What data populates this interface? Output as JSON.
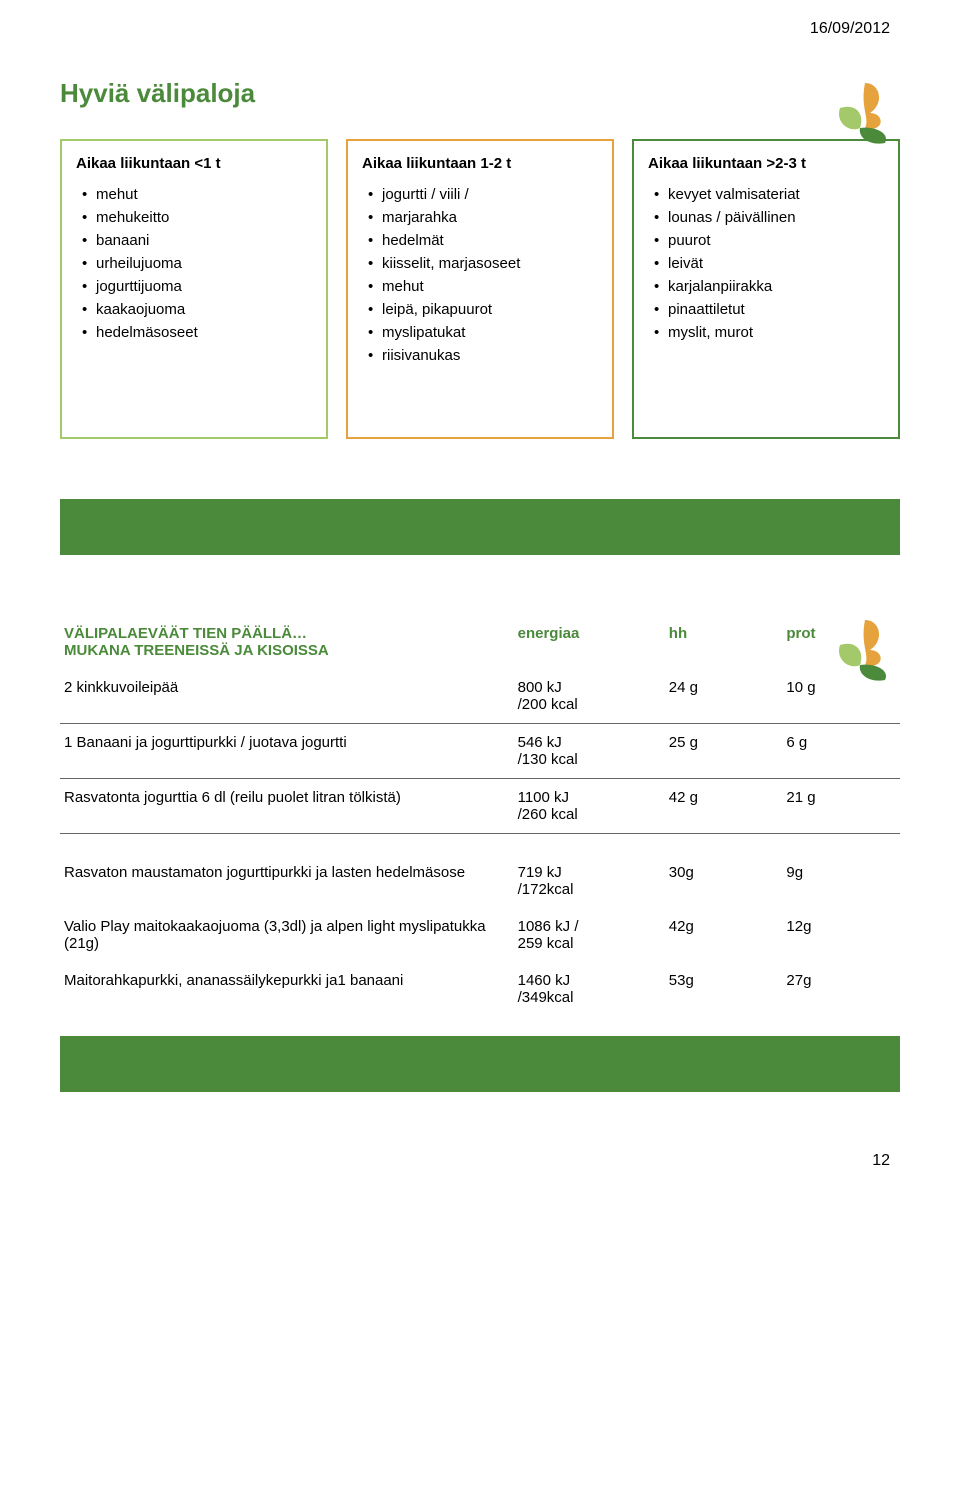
{
  "header": {
    "date": "16/09/2012"
  },
  "footer": {
    "page_number": "12"
  },
  "colors": {
    "accent_green": "#4a8a3a",
    "box1_border": "#a4c96a",
    "box2_border": "#e6a23c",
    "box3_border": "#4a8a3a",
    "bottom_bar": "#4a8a3a"
  },
  "logo": {
    "swish_orange": "#e6a23c",
    "swish_green_light": "#a4c96a",
    "swish_green_dark": "#4a8a3a"
  },
  "slide1": {
    "title": "Hyviä välipaloja",
    "cols": [
      {
        "heading": "Aikaa liikuntaan <1 t",
        "items": [
          "mehut",
          "mehukeitto",
          "banaani",
          "urheilujuoma",
          "jogurttijuoma",
          "kaakaojuoma",
          "hedelmäsoseet"
        ]
      },
      {
        "heading": "Aikaa liikuntaan 1-2 t",
        "items": [
          "jogurtti / viili /",
          "marjarahka",
          "hedelmät",
          "kiisselit, marjasoseet",
          "mehut",
          "leipä, pikapuurot",
          "myslipatukat",
          "riisivanukas"
        ]
      },
      {
        "heading": "Aikaa liikuntaan >2-3 t",
        "items": [
          "kevyet valmisateriat",
          "lounas / päivällinen",
          "puurot",
          "leivät",
          "karjalanpiirakka",
          "pinaattiletut",
          "myslit, murot"
        ]
      }
    ]
  },
  "slide2": {
    "table_heading_left": "VÄLIPALAEVÄÄT TIEN PÄÄLLÄ…\nMUKANA TREENEISSÄ JA KISOISSA",
    "headers": [
      "energiaa",
      "hh",
      "prot"
    ],
    "rows_a": [
      {
        "label": "2 kinkkuvoileipää",
        "energy": "800 kJ\n/200 kcal",
        "hh": "24 g",
        "prot": "10 g"
      },
      {
        "label": "1 Banaani ja jogurttipurkki / juotava jogurtti",
        "energy": "546 kJ\n/130 kcal",
        "hh": "25 g",
        "prot": "6 g"
      },
      {
        "label": "Rasvatonta jogurttia 6 dl  (reilu puolet litran tölkistä)",
        "energy": "1100 kJ\n/260 kcal",
        "hh": "42 g",
        "prot": "21 g"
      }
    ],
    "rows_b": [
      {
        "label": "Rasvaton maustamaton jogurttipurkki ja lasten hedelmäsose",
        "energy": "719 kJ\n/172kcal",
        "hh": "30g",
        "prot": "9g"
      },
      {
        "label": "Valio Play maitokaakaojuoma (3,3dl) ja alpen light myslipatukka (21g)",
        "energy": "1086 kJ /\n259 kcal",
        "hh": "42g",
        "prot": "12g"
      },
      {
        "label": "Maitorahkapurkki, ananassäilykepurkki ja1 banaani",
        "energy": "1460 kJ\n/349kcal",
        "hh": "53g",
        "prot": "27g"
      }
    ]
  }
}
